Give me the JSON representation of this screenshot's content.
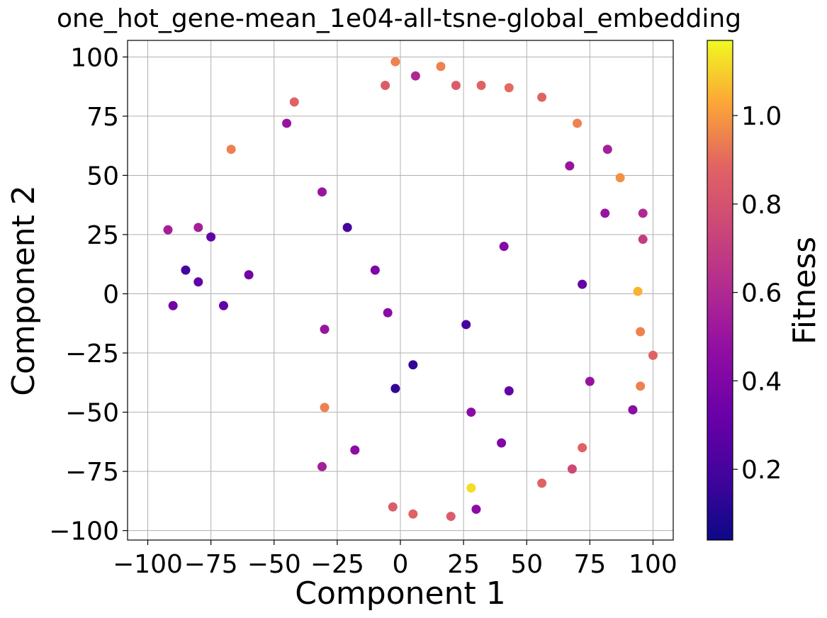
{
  "chart_data": {
    "type": "scatter",
    "title": "one_hot_gene-mean_1e04-all-tsne-global_embedding",
    "xlabel": "Component 1",
    "ylabel": "Component 2",
    "xlim": [
      -108,
      108
    ],
    "ylim": [
      -104,
      107
    ],
    "xticks": [
      -100,
      -75,
      -50,
      -25,
      0,
      25,
      50,
      75,
      100
    ],
    "yticks": [
      -100,
      -75,
      -50,
      -25,
      0,
      25,
      50,
      75,
      100
    ],
    "xtick_labels": [
      "−100",
      "−75",
      "−50",
      "−25",
      "0",
      "25",
      "50",
      "75",
      "100"
    ],
    "ytick_labels": [
      "−100",
      "−75",
      "−50",
      "−25",
      "0",
      "25",
      "50",
      "75",
      "100"
    ],
    "grid": true,
    "colorbar": {
      "label": "Fitness",
      "colormap": "plasma",
      "range": [
        0.04,
        1.17
      ],
      "ticks": [
        0.2,
        0.4,
        0.6,
        0.8,
        1.0
      ],
      "tick_labels": [
        "0.2",
        "0.4",
        "0.6",
        "0.8",
        "1.0"
      ]
    },
    "points": [
      {
        "x": -2,
        "y": 98,
        "fitness": 0.95
      },
      {
        "x": 6,
        "y": 92,
        "fitness": 0.6
      },
      {
        "x": 16,
        "y": 96,
        "fitness": 0.95
      },
      {
        "x": -6,
        "y": 88,
        "fitness": 0.85
      },
      {
        "x": 32,
        "y": 88,
        "fitness": 0.88
      },
      {
        "x": -42,
        "y": 81,
        "fitness": 0.88
      },
      {
        "x": 43,
        "y": 87,
        "fitness": 0.9
      },
      {
        "x": 56,
        "y": 83,
        "fitness": 0.88
      },
      {
        "x": -45,
        "y": 72,
        "fitness": 0.5
      },
      {
        "x": 70,
        "y": 72,
        "fitness": 0.95
      },
      {
        "x": 82,
        "y": 61,
        "fitness": 0.55
      },
      {
        "x": 67,
        "y": 54,
        "fitness": 0.5
      },
      {
        "x": -67,
        "y": 61,
        "fitness": 0.95
      },
      {
        "x": 87,
        "y": 49,
        "fitness": 0.98
      },
      {
        "x": -31,
        "y": 43,
        "fitness": 0.5
      },
      {
        "x": -80,
        "y": 28,
        "fitness": 0.55
      },
      {
        "x": -92,
        "y": 27,
        "fitness": 0.55
      },
      {
        "x": -75,
        "y": 24,
        "fitness": 0.3
      },
      {
        "x": 96,
        "y": 34,
        "fitness": 0.6
      },
      {
        "x": 81,
        "y": 34,
        "fitness": 0.5
      },
      {
        "x": -21,
        "y": 28,
        "fitness": 0.2
      },
      {
        "x": 41,
        "y": 20,
        "fitness": 0.42
      },
      {
        "x": 96,
        "y": 23,
        "fitness": 0.7
      },
      {
        "x": -85,
        "y": 10,
        "fitness": 0.2
      },
      {
        "x": -80,
        "y": 5,
        "fitness": 0.3
      },
      {
        "x": -60,
        "y": 8,
        "fitness": 0.35
      },
      {
        "x": -70,
        "y": -5,
        "fitness": 0.3
      },
      {
        "x": -90,
        "y": -5,
        "fitness": 0.35
      },
      {
        "x": -10,
        "y": 10,
        "fitness": 0.4
      },
      {
        "x": -5,
        "y": -8,
        "fitness": 0.45
      },
      {
        "x": 72,
        "y": 4,
        "fitness": 0.3
      },
      {
        "x": 94,
        "y": 1,
        "fitness": 1.05
      },
      {
        "x": 26,
        "y": -13,
        "fitness": 0.2
      },
      {
        "x": -30,
        "y": -15,
        "fitness": 0.5
      },
      {
        "x": 5,
        "y": -30,
        "fitness": 0.15
      },
      {
        "x": -2,
        "y": -40,
        "fitness": 0.15
      },
      {
        "x": 43,
        "y": -41,
        "fitness": 0.3
      },
      {
        "x": 75,
        "y": -37,
        "fitness": 0.5
      },
      {
        "x": 92,
        "y": -49,
        "fitness": 0.45
      },
      {
        "x": 28,
        "y": -50,
        "fitness": 0.45
      },
      {
        "x": 95,
        "y": -39,
        "fitness": 0.95
      },
      {
        "x": -30,
        "y": -48,
        "fitness": 0.95
      },
      {
        "x": 40,
        "y": -63,
        "fitness": 0.4
      },
      {
        "x": -18,
        "y": -66,
        "fitness": 0.45
      },
      {
        "x": -31,
        "y": -73,
        "fitness": 0.55
      },
      {
        "x": 28,
        "y": -82,
        "fitness": 1.12
      },
      {
        "x": 30,
        "y": -91,
        "fitness": 0.45
      },
      {
        "x": 5,
        "y": -93,
        "fitness": 0.88
      },
      {
        "x": 20,
        "y": -94,
        "fitness": 0.85
      },
      {
        "x": -3,
        "y": -90,
        "fitness": 0.85
      },
      {
        "x": 72,
        "y": -65,
        "fitness": 0.88
      },
      {
        "x": 68,
        "y": -74,
        "fitness": 0.75
      },
      {
        "x": 56,
        "y": -80,
        "fitness": 0.88
      },
      {
        "x": 100,
        "y": -26,
        "fitness": 0.88
      },
      {
        "x": 95,
        "y": -16,
        "fitness": 0.95
      },
      {
        "x": 22,
        "y": 88,
        "fitness": 0.85
      }
    ]
  }
}
